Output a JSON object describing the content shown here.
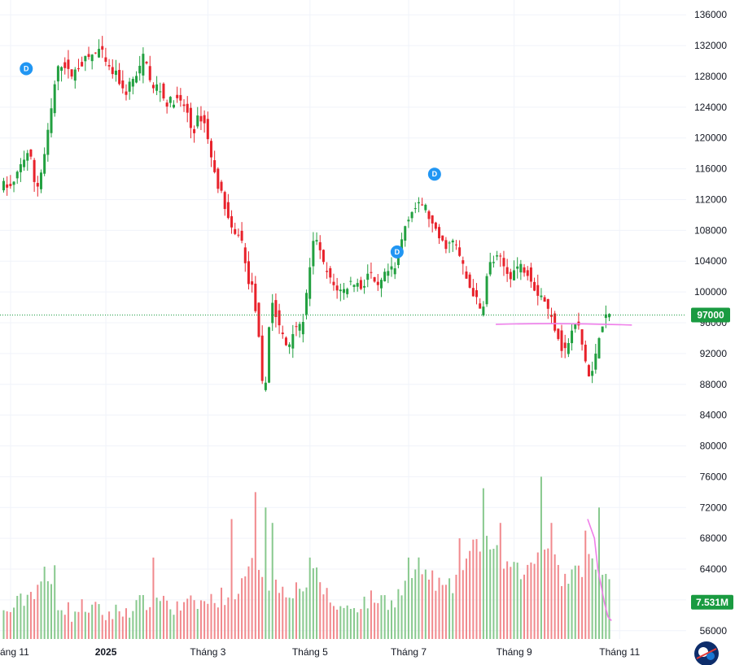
{
  "chart_data": {
    "type": "candlestick",
    "price_axis": {
      "ticks": [
        56000,
        60000,
        64000,
        68000,
        72000,
        76000,
        80000,
        84000,
        88000,
        92000,
        96000,
        100000,
        104000,
        108000,
        112000,
        116000,
        120000,
        124000,
        128000,
        132000,
        136000
      ],
      "tick_labels": [
        "56000",
        "60000",
        "64000",
        "68000",
        "72000",
        "76000",
        "80000",
        "84000",
        "88000",
        "92000",
        "96000",
        "100000",
        "104000",
        "108000",
        "112000",
        "116000",
        "120000",
        "124000",
        "128000",
        "132000",
        "136000"
      ],
      "range": [
        54500,
        137500
      ]
    },
    "time_axis": {
      "labels": [
        "áng 11",
        "2025",
        "Tháng 3",
        "Tháng 5",
        "Tháng 7",
        "Tháng 9",
        "Tháng 11"
      ],
      "label_index": [
        0,
        28,
        58,
        88,
        117,
        148,
        179
      ],
      "bar_count": 185
    },
    "price_path": [
      [
        0,
        114000
      ],
      [
        3,
        113500
      ],
      [
        6,
        117000
      ],
      [
        8,
        118500
      ],
      [
        10,
        113000
      ],
      [
        12,
        116500
      ],
      [
        14,
        122000
      ],
      [
        16,
        128500
      ],
      [
        18,
        130000
      ],
      [
        20,
        128000
      ],
      [
        24,
        130000
      ],
      [
        29,
        131500
      ],
      [
        31,
        129000
      ],
      [
        34,
        128000
      ],
      [
        36,
        125500
      ],
      [
        38,
        127500
      ],
      [
        40,
        128000
      ],
      [
        42,
        131500
      ],
      [
        44,
        126000
      ],
      [
        46,
        127000
      ],
      [
        48,
        124500
      ],
      [
        51,
        125000
      ],
      [
        54,
        124000
      ],
      [
        56,
        120500
      ],
      [
        58,
        123000
      ],
      [
        60,
        121500
      ],
      [
        62,
        116000
      ],
      [
        65,
        112000
      ],
      [
        68,
        107000
      ],
      [
        70,
        108000
      ],
      [
        72,
        102000
      ],
      [
        74,
        100000
      ],
      [
        76,
        91500
      ],
      [
        77,
        84500
      ],
      [
        79,
        99500
      ],
      [
        81,
        96000
      ],
      [
        84,
        92500
      ],
      [
        86,
        96000
      ],
      [
        88,
        95000
      ],
      [
        90,
        101000
      ],
      [
        92,
        108000
      ],
      [
        94,
        104000
      ],
      [
        97,
        101000
      ],
      [
        100,
        100000
      ],
      [
        103,
        101500
      ],
      [
        106,
        100500
      ],
      [
        108,
        103000
      ],
      [
        110,
        100000
      ],
      [
        113,
        102500
      ],
      [
        116,
        103000
      ],
      [
        118,
        108000
      ],
      [
        120,
        110500
      ],
      [
        122,
        111000
      ],
      [
        124,
        111500
      ],
      [
        127,
        108000
      ],
      [
        130,
        106000
      ],
      [
        133,
        106500
      ],
      [
        135,
        104000
      ],
      [
        137,
        101000
      ],
      [
        139,
        99500
      ],
      [
        141,
        97000
      ],
      [
        143,
        103500
      ],
      [
        146,
        104500
      ],
      [
        149,
        102000
      ],
      [
        152,
        103500
      ],
      [
        155,
        102500
      ],
      [
        157,
        100000
      ],
      [
        159,
        99500
      ],
      [
        161,
        97000
      ],
      [
        163,
        95000
      ],
      [
        165,
        92000
      ],
      [
        167,
        94000
      ],
      [
        169,
        96500
      ],
      [
        171,
        92000
      ],
      [
        173,
        88000
      ],
      [
        175,
        93500
      ],
      [
        176,
        95500
      ],
      [
        178,
        97000
      ]
    ],
    "volume_path": [
      [
        0,
        57800
      ],
      [
        5,
        59500
      ],
      [
        9,
        61000
      ],
      [
        12,
        63000
      ],
      [
        16,
        59500
      ],
      [
        20,
        58000
      ],
      [
        24,
        59000
      ],
      [
        30,
        57800
      ],
      [
        36,
        58500
      ],
      [
        42,
        59500
      ],
      [
        46,
        60500
      ],
      [
        50,
        58500
      ],
      [
        54,
        59000
      ],
      [
        60,
        59500
      ],
      [
        66,
        60500
      ],
      [
        70,
        61500
      ],
      [
        74,
        65000
      ],
      [
        78,
        62000
      ],
      [
        84,
        61000
      ],
      [
        88,
        61500
      ],
      [
        92,
        63000
      ],
      [
        96,
        59500
      ],
      [
        100,
        58500
      ],
      [
        106,
        59500
      ],
      [
        110,
        60000
      ],
      [
        114,
        59500
      ],
      [
        118,
        61500
      ],
      [
        122,
        64000
      ],
      [
        126,
        62500
      ],
      [
        130,
        61000
      ],
      [
        134,
        62000
      ],
      [
        136,
        65000
      ],
      [
        138,
        66500
      ],
      [
        142,
        67500
      ],
      [
        146,
        65000
      ],
      [
        150,
        63500
      ],
      [
        154,
        63500
      ],
      [
        158,
        66500
      ],
      [
        160,
        67500
      ],
      [
        162,
        66000
      ],
      [
        164,
        62500
      ],
      [
        168,
        63000
      ],
      [
        172,
        65000
      ],
      [
        174,
        64000
      ],
      [
        176,
        62500
      ]
    ],
    "volume_spikes": [
      [
        15,
        64500
      ],
      [
        44,
        65500
      ],
      [
        67,
        70500
      ],
      [
        74,
        74000
      ],
      [
        77,
        72000
      ],
      [
        79,
        70000
      ],
      [
        90,
        65500
      ],
      [
        119,
        65500
      ],
      [
        134,
        68000
      ],
      [
        141,
        74500
      ],
      [
        146,
        70000
      ],
      [
        158,
        76000
      ],
      [
        161,
        70000
      ],
      [
        171,
        69000
      ],
      [
        175,
        72000
      ]
    ],
    "last_price": 97000,
    "last_price_label": "97000",
    "last_volume": 7531000,
    "last_volume_label": "7.531M",
    "volume_label_level": 59700,
    "horizontal_line": {
      "start_index": 145,
      "end_index": 185,
      "start_price": 95800,
      "end_price": 95700
    },
    "volume_curve": [
      [
        172,
        70500
      ],
      [
        174,
        68000
      ],
      [
        175,
        64000
      ],
      [
        177,
        59500
      ],
      [
        178,
        57800
      ],
      [
        179,
        57300
      ]
    ],
    "dividend_markers": [
      {
        "index": 7,
        "price": 129000,
        "label": "D"
      },
      {
        "index": 116,
        "price": 105200,
        "label": "D"
      },
      {
        "index": 127,
        "price": 115300,
        "label": "D"
      }
    ],
    "colors": {
      "up": "#22a040",
      "down": "#e8222b",
      "volume_up": "#88c98e",
      "volume_down": "#f1898d",
      "last_price_tag": "#1a9b41",
      "volume_tag": "#1a9b41",
      "drawing": "#ef7ee9",
      "dividend": "#2196f3",
      "grid": "#f0f3fa",
      "text": "#131722"
    }
  }
}
